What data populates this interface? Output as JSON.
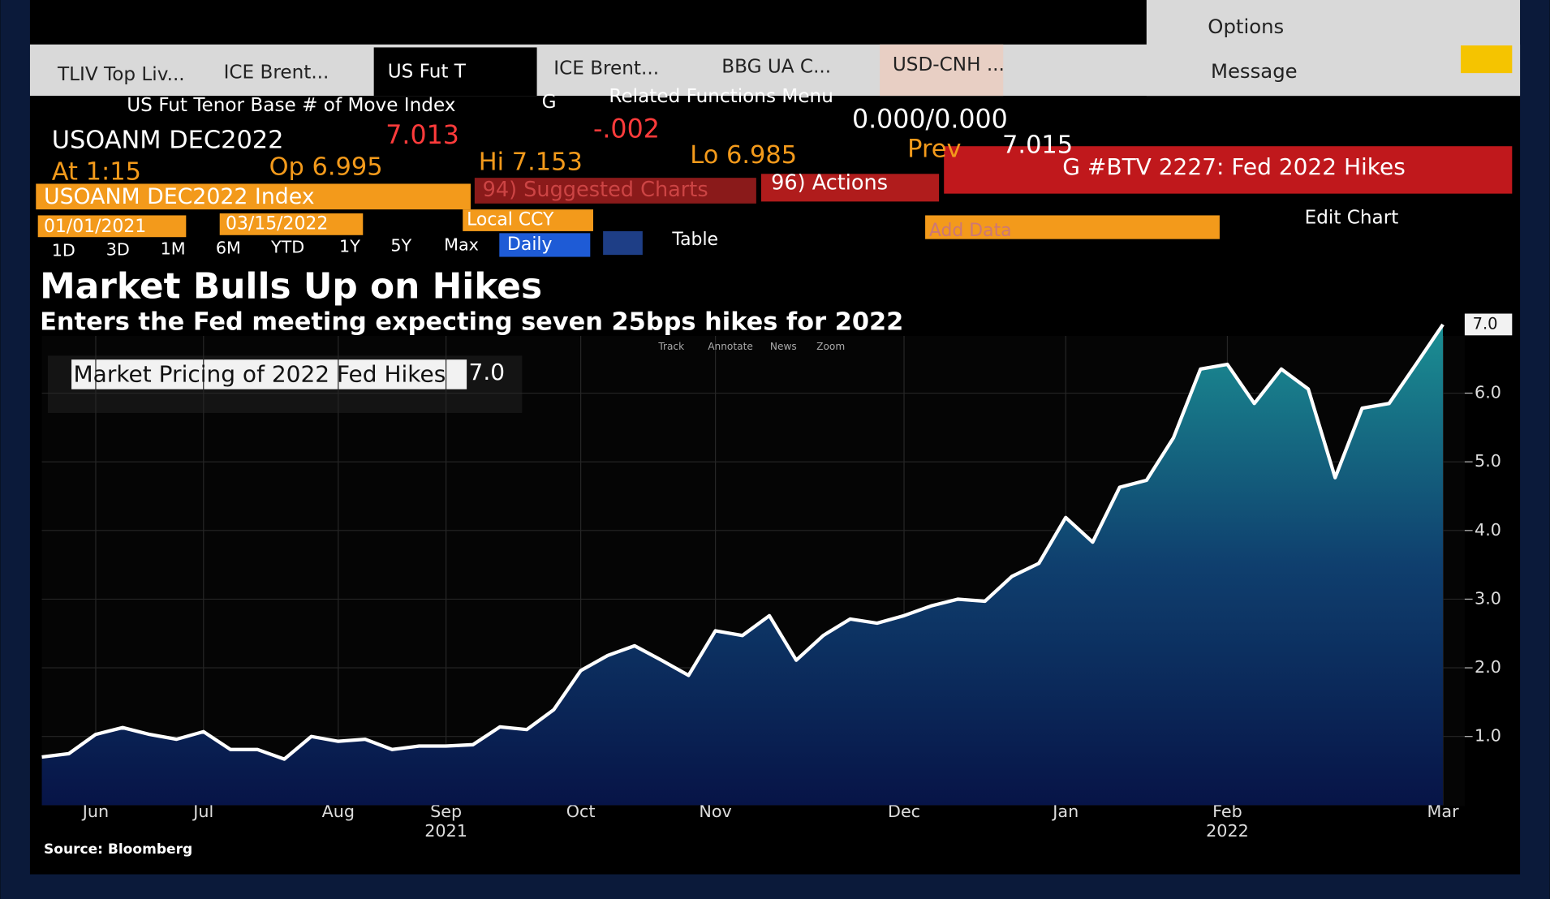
{
  "ui": {
    "tabs": [
      "TLIV Top Liv...",
      "ICE Brent...",
      "US Fut T",
      "ICE Brent...",
      "BBG UA C...",
      "USD-CNH ..."
    ],
    "options": "Options",
    "message": "Message",
    "nav": {
      "function": "US Fut Tenor Base # of Move Index",
      "g": "G",
      "related": "Related Functions Menu"
    },
    "quote": {
      "ticker": "USOANM DEC2022",
      "last": "7.013",
      "change": "-.002",
      "bid_ask": "0.000/0.000",
      "at": "At 1:15",
      "open": "Op 6.995",
      "high": "Hi 7.153",
      "low": "Lo 6.985",
      "prev_label": "Prev",
      "prev": "7.015"
    },
    "security": "USOANM DEC2022 Index",
    "suggested": "94) Suggested Charts",
    "actions": "96) Actions",
    "btv": "G #BTV 2227: Fed 2022 Hikes",
    "start_date": "01/01/2021",
    "end_date": "03/15/2022",
    "currency": "Local CCY",
    "add_data": "Add Data",
    "edit_chart": "Edit Chart",
    "ranges": [
      "1D",
      "3D",
      "1M",
      "6M",
      "YTD",
      "1Y",
      "5Y",
      "Max"
    ],
    "period": "Daily",
    "table": "Table",
    "tools": [
      "Track",
      "Annotate",
      "News",
      "Zoom"
    ],
    "source": "Source: Bloomberg"
  },
  "chart_data": {
    "type": "line",
    "title": "Market Bulls Up on Hikes",
    "subtitle": "Enters the Fed meeting expecting seven 25bps hikes for 2022",
    "categories": [
      null,
      null,
      "Jun",
      null,
      null,
      null,
      "Jul",
      null,
      null,
      null,
      null,
      "Aug",
      null,
      null,
      null,
      "Sep",
      null,
      null,
      null,
      null,
      "Oct",
      null,
      null,
      null,
      null,
      "Nov",
      null,
      null,
      null,
      null,
      null,
      null,
      "Dec",
      null,
      null,
      null,
      null,
      null,
      "Jan",
      null,
      null,
      null,
      null,
      null,
      "Feb",
      null,
      null,
      null,
      null,
      null,
      null,
      null,
      "Mar"
    ],
    "year_labels": [
      "2021",
      "2022"
    ],
    "series": [
      {
        "name": "Market Pricing of 2022 Fed Hikes",
        "color": "#ffffff",
        "last_label": "7.0",
        "values": [
          0.7,
          0.75,
          1.03,
          1.13,
          1.03,
          0.96,
          1.07,
          0.81,
          0.81,
          0.67,
          1.0,
          0.93,
          0.96,
          0.81,
          0.86,
          0.86,
          0.88,
          1.14,
          1.1,
          1.39,
          1.96,
          2.18,
          2.32,
          2.11,
          1.89,
          2.54,
          2.47,
          2.76,
          2.11,
          2.47,
          2.71,
          2.65,
          2.76,
          2.9,
          3.0,
          2.97,
          3.33,
          3.52,
          4.19,
          3.83,
          4.63,
          4.73,
          5.35,
          6.35,
          6.42,
          5.85,
          6.35,
          6.06,
          4.77,
          5.78,
          5.85,
          6.42,
          7.0
        ]
      }
    ],
    "ylim": [
      0,
      7.1
    ],
    "yticks": [
      {
        "value": 1,
        "label": "1.0"
      },
      {
        "value": 2,
        "label": "2.0"
      },
      {
        "value": 3,
        "label": "3.0"
      },
      {
        "value": 4,
        "label": "4.0"
      },
      {
        "value": 5,
        "label": "5.0"
      },
      {
        "value": 6,
        "label": "6.0"
      }
    ],
    "grid": true
  }
}
